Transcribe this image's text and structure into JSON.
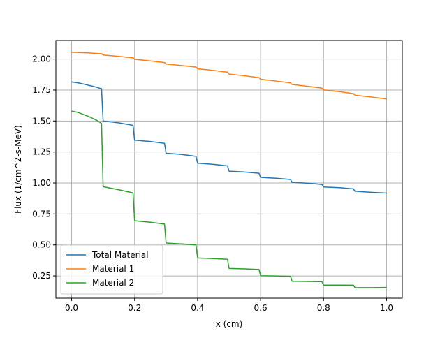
{
  "chart_data": {
    "type": "line",
    "title": "",
    "xlabel": "x (cm)",
    "ylabel": "Flux (1/cm^2-s-MeV)",
    "xlim": [
      -0.05,
      1.05
    ],
    "ylim": [
      0.07,
      2.15
    ],
    "xticks": [
      "0.0",
      "0.2",
      "0.4",
      "0.6",
      "0.8",
      "1.0"
    ],
    "yticks": [
      "0.25",
      "0.50",
      "0.75",
      "1.00",
      "1.25",
      "1.50",
      "1.75",
      "2.00"
    ],
    "grid": true,
    "legend_position": "lower-left",
    "series": [
      {
        "name": "Total Material",
        "color": "#1f77b4",
        "x": [
          0.0,
          0.02,
          0.04,
          0.06,
          0.08,
          0.095,
          0.1,
          0.15,
          0.195,
          0.2,
          0.25,
          0.295,
          0.3,
          0.35,
          0.395,
          0.4,
          0.45,
          0.495,
          0.5,
          0.55,
          0.595,
          0.6,
          0.65,
          0.695,
          0.7,
          0.75,
          0.795,
          0.8,
          0.85,
          0.895,
          0.9,
          0.95,
          1.0
        ],
        "y": [
          1.815,
          1.808,
          1.797,
          1.785,
          1.772,
          1.76,
          1.5,
          1.485,
          1.465,
          1.345,
          1.335,
          1.32,
          1.24,
          1.23,
          1.215,
          1.16,
          1.15,
          1.138,
          1.095,
          1.088,
          1.078,
          1.045,
          1.038,
          1.028,
          1.005,
          0.998,
          0.988,
          0.968,
          0.962,
          0.952,
          0.933,
          0.925,
          0.918
        ]
      },
      {
        "name": "Material 1",
        "color": "#ff7f0e",
        "x": [
          0.0,
          0.05,
          0.095,
          0.1,
          0.15,
          0.195,
          0.2,
          0.25,
          0.295,
          0.3,
          0.35,
          0.395,
          0.4,
          0.45,
          0.495,
          0.5,
          0.55,
          0.595,
          0.6,
          0.65,
          0.695,
          0.7,
          0.75,
          0.795,
          0.8,
          0.85,
          0.895,
          0.9,
          0.95,
          1.0
        ],
        "y": [
          2.055,
          2.05,
          2.043,
          2.033,
          2.022,
          2.01,
          1.998,
          1.985,
          1.972,
          1.96,
          1.948,
          1.935,
          1.922,
          1.908,
          1.894,
          1.879,
          1.865,
          1.85,
          1.837,
          1.822,
          1.808,
          1.795,
          1.78,
          1.765,
          1.751,
          1.737,
          1.721,
          1.708,
          1.694,
          1.678
        ]
      },
      {
        "name": "Material 2",
        "color": "#2ca02c",
        "x": [
          0.0,
          0.02,
          0.04,
          0.06,
          0.08,
          0.095,
          0.1,
          0.15,
          0.195,
          0.2,
          0.25,
          0.295,
          0.3,
          0.35,
          0.395,
          0.4,
          0.45,
          0.495,
          0.5,
          0.55,
          0.595,
          0.6,
          0.65,
          0.695,
          0.7,
          0.75,
          0.795,
          0.8,
          0.85,
          0.895,
          0.9,
          0.95,
          1.0
        ],
        "y": [
          1.58,
          1.57,
          1.55,
          1.53,
          1.505,
          1.48,
          0.97,
          0.945,
          0.92,
          0.695,
          0.683,
          0.668,
          0.515,
          0.508,
          0.5,
          0.395,
          0.39,
          0.384,
          0.31,
          0.307,
          0.302,
          0.252,
          0.25,
          0.247,
          0.207,
          0.205,
          0.203,
          0.176,
          0.176,
          0.175,
          0.155,
          0.155,
          0.157
        ]
      }
    ]
  }
}
